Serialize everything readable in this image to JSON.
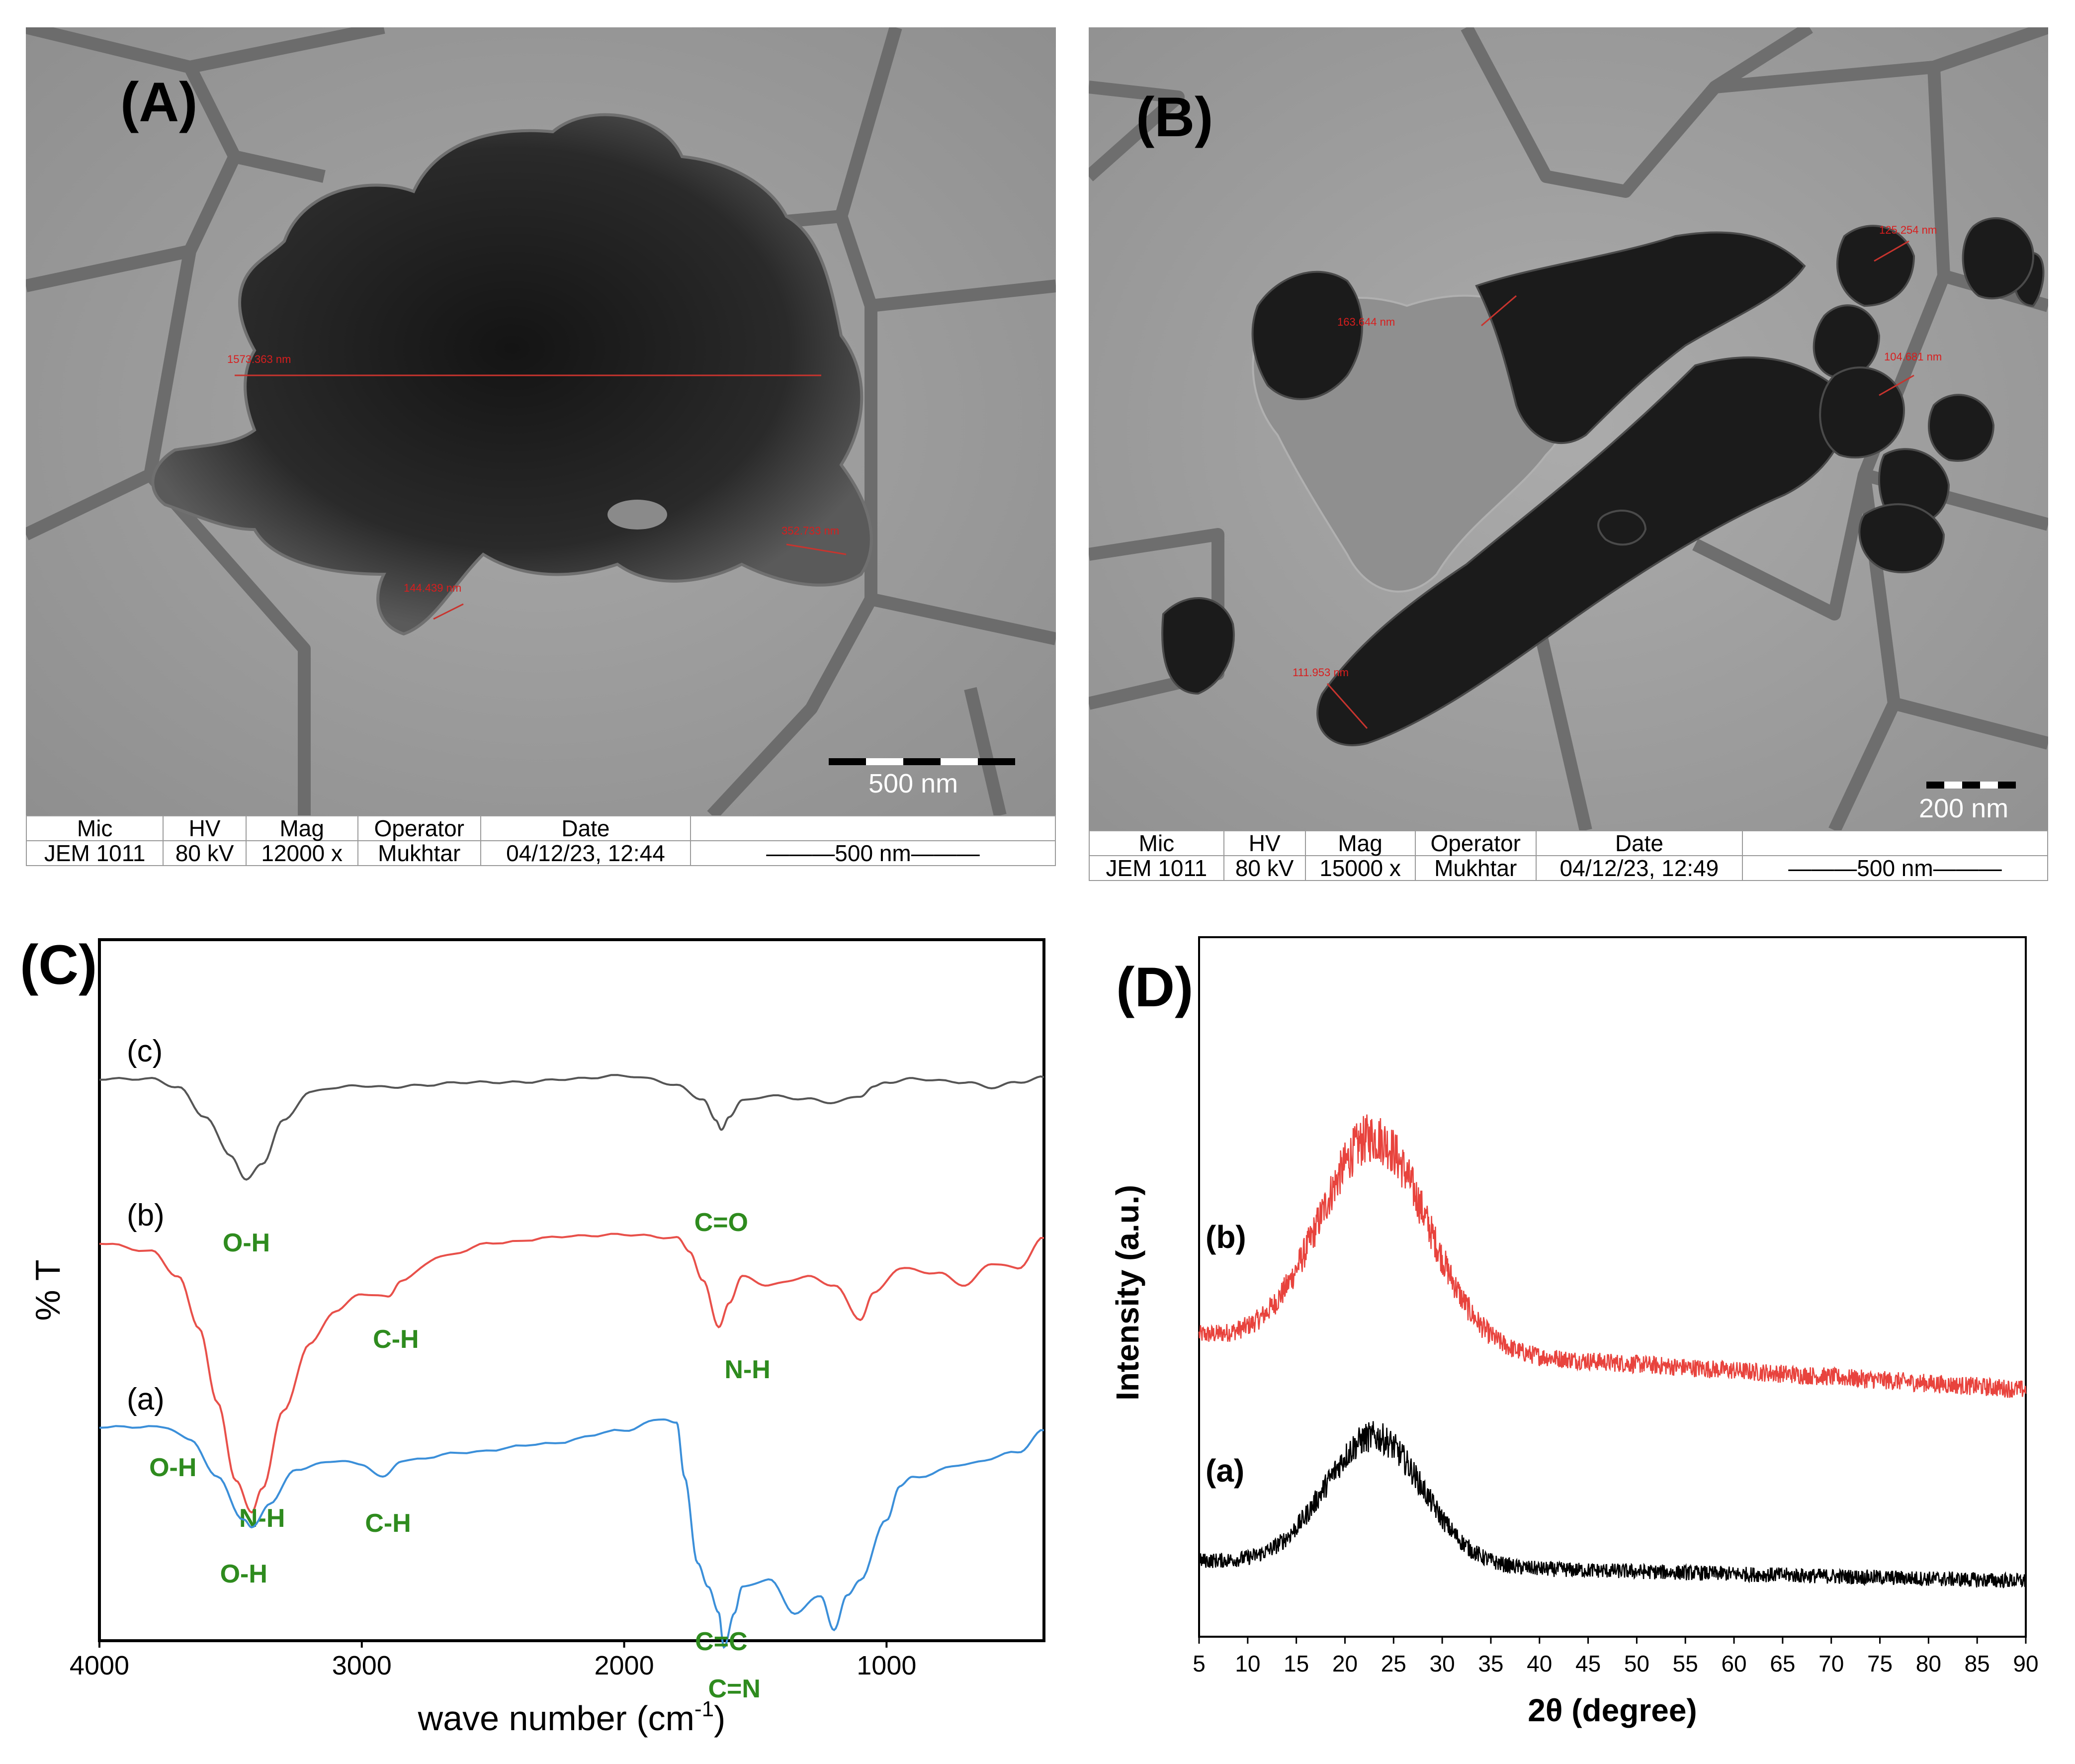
{
  "figure": {
    "panels": [
      {
        "id": "A",
        "letter": "(A)",
        "scale_bar_label": "500 nm",
        "measurements": [
          "1573.363 nm",
          "352.733 nm",
          "144.439 nm"
        ],
        "info": {
          "headers": [
            "Mic",
            "HV",
            "Mag",
            "Operator",
            "Date"
          ],
          "values": [
            "JEM 1011",
            "80 kV",
            "12000 x",
            "Mukhtar",
            "04/12/23, 12:44"
          ],
          "scale_text": "500 nm"
        }
      },
      {
        "id": "B",
        "letter": "(B)",
        "scale_bar_label": "200 nm",
        "measurements": [
          "163.644 nm",
          "125.254 nm",
          "104.681 nm",
          "111.953 nm"
        ],
        "info": {
          "headers": [
            "Mic",
            "HV",
            "Mag",
            "Operator",
            "Date"
          ],
          "values": [
            "JEM 1011",
            "80 kV",
            "15000 x",
            "Mukhtar",
            "04/12/23, 12:49"
          ],
          "scale_text": "500 nm"
        }
      }
    ]
  },
  "chart_data": [
    {
      "id": "C",
      "letter": "(C)",
      "type": "line",
      "title": "",
      "xlabel_main": "wave number (cm",
      "xlabel_sup": "-1",
      "xlabel_end": ")",
      "ylabel": "% T",
      "xlim": [
        4000,
        400
      ],
      "xticks": [
        "4000",
        "3000",
        "2000",
        "1000"
      ],
      "xtick_values": [
        4000,
        3000,
        2000,
        1000
      ],
      "series": [
        {
          "name": "(c)",
          "color": "#555555",
          "baseline": 0.0,
          "points": [
            [
              4000,
              0
            ],
            [
              3800,
              0
            ],
            [
              3700,
              -0.05
            ],
            [
              3600,
              -0.22
            ],
            [
              3500,
              -0.45
            ],
            [
              3440,
              -0.6
            ],
            [
              3380,
              -0.5
            ],
            [
              3300,
              -0.25
            ],
            [
              3200,
              -0.08
            ],
            [
              3100,
              -0.05
            ],
            [
              3000,
              -0.04
            ],
            [
              2900,
              -0.05
            ],
            [
              2800,
              -0.04
            ],
            [
              2600,
              -0.02
            ],
            [
              2400,
              -0.02
            ],
            [
              2200,
              0
            ],
            [
              2000,
              0.02
            ],
            [
              1900,
              0.0
            ],
            [
              1800,
              -0.04
            ],
            [
              1700,
              -0.12
            ],
            [
              1650,
              -0.25
            ],
            [
              1630,
              -0.3
            ],
            [
              1600,
              -0.22
            ],
            [
              1550,
              -0.13
            ],
            [
              1450,
              -0.1
            ],
            [
              1300,
              -0.12
            ],
            [
              1200,
              -0.14
            ],
            [
              1100,
              -0.1
            ],
            [
              1050,
              -0.05
            ],
            [
              1000,
              -0.02
            ],
            [
              900,
              0.0
            ],
            [
              700,
              -0.02
            ],
            [
              600,
              -0.05
            ],
            [
              500,
              -0.02
            ],
            [
              400,
              0.01
            ]
          ],
          "labels": [
            {
              "text": "O-H",
              "at": [
                3440,
                -1.02
              ]
            },
            {
              "text": "C=O",
              "at": [
                1630,
                -0.9
              ]
            }
          ]
        },
        {
          "name": "(b)",
          "color": "#e8504a",
          "baseline": 0.0,
          "points": [
            [
              4000,
              0
            ],
            [
              3800,
              -0.05
            ],
            [
              3700,
              -0.2
            ],
            [
              3620,
              -0.5
            ],
            [
              3550,
              -0.95
            ],
            [
              3480,
              -1.4
            ],
            [
              3420,
              -1.6
            ],
            [
              3380,
              -1.45
            ],
            [
              3300,
              -1.0
            ],
            [
              3200,
              -0.6
            ],
            [
              3100,
              -0.4
            ],
            [
              3000,
              -0.3
            ],
            [
              2900,
              -0.32
            ],
            [
              2850,
              -0.22
            ],
            [
              2700,
              -0.08
            ],
            [
              2500,
              0.0
            ],
            [
              2200,
              0.04
            ],
            [
              2000,
              0.05
            ],
            [
              1800,
              0.03
            ],
            [
              1750,
              -0.05
            ],
            [
              1700,
              -0.22
            ],
            [
              1640,
              -0.5
            ],
            [
              1600,
              -0.35
            ],
            [
              1550,
              -0.2
            ],
            [
              1450,
              -0.25
            ],
            [
              1300,
              -0.2
            ],
            [
              1200,
              -0.25
            ],
            [
              1100,
              -0.45
            ],
            [
              1050,
              -0.3
            ],
            [
              950,
              -0.15
            ],
            [
              800,
              -0.18
            ],
            [
              700,
              -0.25
            ],
            [
              600,
              -0.12
            ],
            [
              500,
              -0.15
            ],
            [
              400,
              0.03
            ]
          ],
          "labels": [
            {
              "text": "C-H",
              "at": [
                2870,
                -0.62
              ]
            },
            {
              "text": "N-H",
              "at": [
                1530,
                -0.8
              ]
            },
            {
              "text": "N-H",
              "at": [
                3380,
                -1.68
              ]
            },
            {
              "text": "O-H",
              "at": [
                3720,
                -1.38
              ]
            }
          ]
        },
        {
          "name": "(a)",
          "color": "#3b8fd9",
          "baseline": 0.0,
          "points": [
            [
              4000,
              0
            ],
            [
              3750,
              0.0
            ],
            [
              3650,
              -0.08
            ],
            [
              3550,
              -0.3
            ],
            [
              3450,
              -0.55
            ],
            [
              3420,
              -0.6
            ],
            [
              3350,
              -0.45
            ],
            [
              3250,
              -0.25
            ],
            [
              3100,
              -0.2
            ],
            [
              3000,
              -0.22
            ],
            [
              2920,
              -0.3
            ],
            [
              2850,
              -0.2
            ],
            [
              2600,
              -0.15
            ],
            [
              2300,
              -0.1
            ],
            [
              2000,
              -0.02
            ],
            [
              1850,
              0.05
            ],
            [
              1800,
              0.02
            ],
            [
              1770,
              -0.3
            ],
            [
              1720,
              -0.8
            ],
            [
              1680,
              -0.95
            ],
            [
              1640,
              -1.1
            ],
            [
              1620,
              -1.3
            ],
            [
              1580,
              -1.1
            ],
            [
              1550,
              -0.95
            ],
            [
              1450,
              -0.9
            ],
            [
              1350,
              -1.1
            ],
            [
              1250,
              -1.0
            ],
            [
              1200,
              -1.2
            ],
            [
              1150,
              -1.0
            ],
            [
              1100,
              -0.9
            ],
            [
              1000,
              -0.55
            ],
            [
              950,
              -0.35
            ],
            [
              900,
              -0.3
            ],
            [
              700,
              -0.22
            ],
            [
              500,
              -0.15
            ],
            [
              400,
              -0.02
            ]
          ],
          "labels": [
            {
              "text": "O-H",
              "at": [
                3450,
                -0.92
              ]
            },
            {
              "text": "C-H",
              "at": [
                2900,
                -0.62
              ]
            },
            {
              "text": "C=C",
              "at": [
                1630,
                -1.32
              ]
            },
            {
              "text": "C=N",
              "at": [
                1580,
                -1.6
              ]
            }
          ]
        }
      ]
    },
    {
      "id": "D",
      "letter": "(D)",
      "type": "line",
      "title": "",
      "xlabel": "2θ (degree)",
      "ylabel": "Intensity (a.u.)",
      "xlim": [
        5,
        90
      ],
      "xticks": [
        "5",
        "10",
        "15",
        "20",
        "25",
        "30",
        "35",
        "40",
        "45",
        "50",
        "55",
        "60",
        "65",
        "70",
        "75",
        "80",
        "85",
        "90"
      ],
      "xtick_values": [
        5,
        10,
        15,
        20,
        25,
        30,
        35,
        40,
        45,
        50,
        55,
        60,
        65,
        70,
        75,
        80,
        85,
        90
      ],
      "series": [
        {
          "name": "(b)",
          "color": "#e8433d",
          "peak_center": 23,
          "peak_height": 0.62,
          "peak_width": 5.5,
          "tail_start": 0.32,
          "tail_end": 0.0,
          "noise": 0.11
        },
        {
          "name": "(a)",
          "color": "#000000",
          "peak_center": 23,
          "peak_height": 0.38,
          "peak_width": 5.0,
          "tail_start": 0.12,
          "tail_end": 0.0,
          "noise": 0.09
        }
      ]
    }
  ]
}
